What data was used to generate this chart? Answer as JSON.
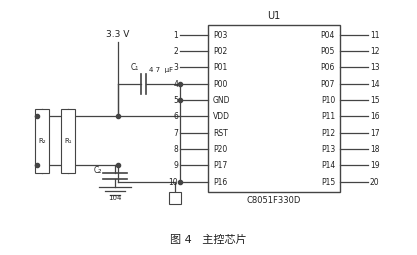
{
  "title": "图 4   主控芯片",
  "chip_label": "U1",
  "chip_name": "C8051F330D",
  "left_pins": [
    {
      "num": "1",
      "label": "P03"
    },
    {
      "num": "2",
      "label": "P02"
    },
    {
      "num": "3",
      "label": "P01"
    },
    {
      "num": "4",
      "label": "P00"
    },
    {
      "num": "5",
      "label": "GND"
    },
    {
      "num": "6",
      "label": "VDD"
    },
    {
      "num": "7",
      "label": "RST"
    },
    {
      "num": "8",
      "label": "P20"
    },
    {
      "num": "9",
      "label": "P17"
    },
    {
      "num": "10",
      "label": "P16"
    }
  ],
  "right_pins": [
    {
      "num": "11",
      "label": "P04"
    },
    {
      "num": "12",
      "label": "P05"
    },
    {
      "num": "13",
      "label": "P06"
    },
    {
      "num": "14",
      "label": "P07"
    },
    {
      "num": "15",
      "label": "P10"
    },
    {
      "num": "16",
      "label": "P11"
    },
    {
      "num": "17",
      "label": "P12"
    },
    {
      "num": "18",
      "label": "P13"
    },
    {
      "num": "19",
      "label": "P14"
    },
    {
      "num": "20",
      "label": "P15"
    }
  ],
  "vdd_label": "3.3 V",
  "cap1_label": "C₁",
  "cap1_value": "4 7  μF",
  "cap2_label": "C₂",
  "cap2_value": "104",
  "r2_label": "R₂",
  "r1_label": "R₁",
  "line_color": "#444444",
  "text_color": "#222222"
}
